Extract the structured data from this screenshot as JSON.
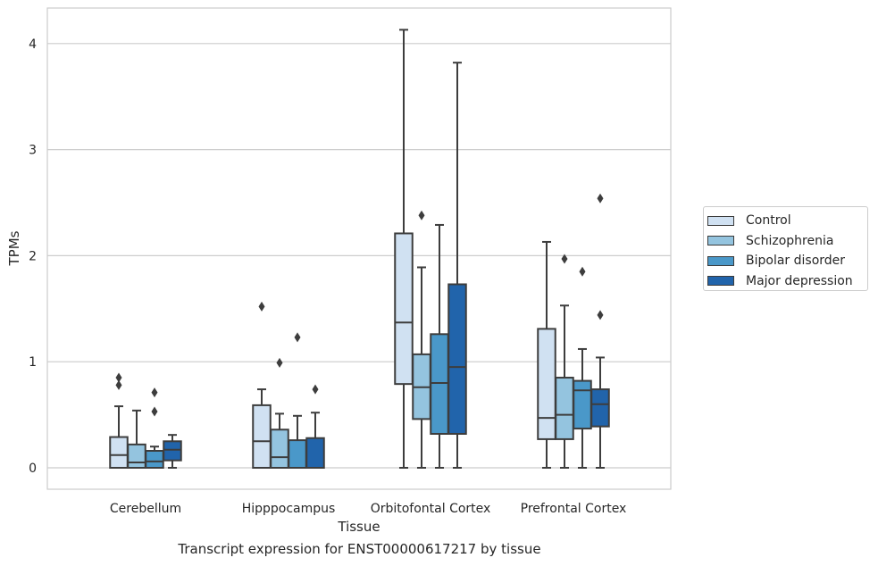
{
  "caption": "Transcript expression for ENST00000617217 by tissue",
  "chart_data": {
    "type": "box",
    "xlabel": "Tissue",
    "ylabel": "TPMs",
    "ylim": [
      -0.2,
      4.32
    ],
    "yticks": [
      0,
      1,
      2,
      3,
      4
    ],
    "grid": true,
    "legend_position": "right",
    "categories": [
      "Cerebellum",
      "Hipppocampus",
      "Orbitofontal Cortex",
      "Prefrontal Cortex"
    ],
    "series": [
      {
        "name": "Control",
        "color": "#d0e1f2",
        "boxes": [
          {
            "whislo": 0,
            "q1": 0,
            "med": 0.12,
            "q3": 0.29,
            "whishi": 0.58,
            "fliers": [
              0.78,
              0.85
            ]
          },
          {
            "whislo": 0,
            "q1": 0,
            "med": 0.25,
            "q3": 0.59,
            "whishi": 0.74,
            "fliers": [
              1.52
            ]
          },
          {
            "whislo": 0,
            "q1": 0.79,
            "med": 1.37,
            "q3": 2.21,
            "whishi": 4.13,
            "fliers": []
          },
          {
            "whislo": 0,
            "q1": 0.27,
            "med": 0.47,
            "q3": 1.31,
            "whishi": 2.13,
            "fliers": []
          }
        ]
      },
      {
        "name": "Schizophrenia",
        "color": "#94c4df",
        "boxes": [
          {
            "whislo": 0,
            "q1": 0,
            "med": 0.05,
            "q3": 0.22,
            "whishi": 0.54,
            "fliers": []
          },
          {
            "whislo": 0,
            "q1": 0,
            "med": 0.1,
            "q3": 0.36,
            "whishi": 0.51,
            "fliers": [
              0.99
            ]
          },
          {
            "whislo": 0,
            "q1": 0.46,
            "med": 0.76,
            "q3": 1.07,
            "whishi": 1.89,
            "fliers": [
              2.38
            ]
          },
          {
            "whislo": 0,
            "q1": 0.27,
            "med": 0.5,
            "q3": 0.85,
            "whishi": 1.53,
            "fliers": [
              1.97
            ]
          }
        ]
      },
      {
        "name": "Bipolar disorder",
        "color": "#4a98c9",
        "boxes": [
          {
            "whislo": 0,
            "q1": 0,
            "med": 0.06,
            "q3": 0.16,
            "whishi": 0.2,
            "fliers": [
              0.53,
              0.71
            ]
          },
          {
            "whislo": 0,
            "q1": 0,
            "med": 0,
            "q3": 0.26,
            "whishi": 0.49,
            "fliers": [
              1.23
            ]
          },
          {
            "whislo": 0,
            "q1": 0.32,
            "med": 0.8,
            "q3": 1.26,
            "whishi": 2.29,
            "fliers": []
          },
          {
            "whislo": 0,
            "q1": 0.37,
            "med": 0.73,
            "q3": 0.82,
            "whishi": 1.12,
            "fliers": [
              1.85
            ]
          }
        ]
      },
      {
        "name": "Major depression",
        "color": "#2164ab",
        "boxes": [
          {
            "whislo": 0,
            "q1": 0.07,
            "med": 0.17,
            "q3": 0.25,
            "whishi": 0.31,
            "fliers": []
          },
          {
            "whislo": 0,
            "q1": 0,
            "med": 0,
            "q3": 0.28,
            "whishi": 0.52,
            "fliers": [
              0.74
            ]
          },
          {
            "whislo": 0,
            "q1": 0.32,
            "med": 0.95,
            "q3": 1.73,
            "whishi": 3.82,
            "fliers": []
          },
          {
            "whislo": 0,
            "q1": 0.39,
            "med": 0.6,
            "q3": 0.74,
            "whishi": 1.04,
            "fliers": [
              1.44,
              2.54
            ]
          }
        ]
      }
    ]
  }
}
